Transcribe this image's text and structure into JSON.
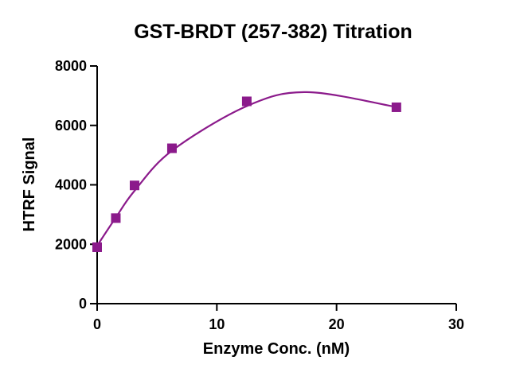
{
  "chart_data": {
    "type": "scatter",
    "title": "GST-BRDT (257-382) Titration",
    "xlabel": "Enzyme Conc. (nM)",
    "ylabel": "HTRF Signal",
    "xlim": [
      0,
      30
    ],
    "ylim": [
      0,
      8000
    ],
    "x_ticks": [
      "0",
      "10",
      "20",
      "30"
    ],
    "y_ticks": [
      "0",
      "2000",
      "4000",
      "6000",
      "8000"
    ],
    "grid": false,
    "legend": "none",
    "series": [
      {
        "x": [
          0,
          1.56,
          3.125,
          6.25,
          12.5,
          25
        ],
        "y": [
          1900,
          2880,
          3980,
          5230,
          6810,
          6610
        ],
        "marker": "square",
        "color": "#8b1a8b",
        "fit": "quadratic",
        "fit_curve": {
          "x": [
            0,
            1.56,
            3.125,
            6.25,
            12.5,
            17.5,
            25
          ],
          "y": [
            1950,
            2900,
            3800,
            5150,
            6650,
            7120,
            6620
          ]
        }
      }
    ]
  }
}
